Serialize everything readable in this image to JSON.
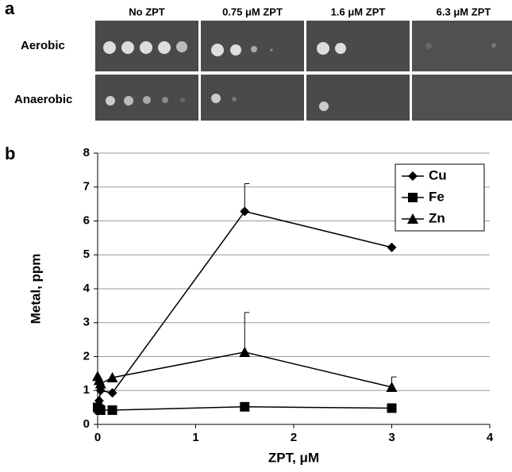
{
  "panel_a": {
    "label": "a",
    "columns": [
      "No ZPT",
      "0.75 μM ZPT",
      "1.6 μM ZPT",
      "6.3 μM ZPT"
    ],
    "rows": [
      "Aerobic",
      "Anaerobic"
    ]
  },
  "panel_b": {
    "label": "b"
  },
  "chart_data": {
    "type": "line",
    "xlabel": "ZPT, μM",
    "ylabel": "Metal, ppm",
    "x": [
      0,
      0.015,
      0.03,
      0.15,
      1.5,
      3
    ],
    "series": [
      {
        "name": "Cu",
        "color": "#000000",
        "marker": "diamond",
        "values": [
          0.5,
          0.7,
          1.0,
          0.93,
          6.28,
          5.22
        ],
        "errors": [
          null,
          null,
          null,
          null,
          0.82,
          null
        ]
      },
      {
        "name": "Fe",
        "color": "#000000",
        "marker": "square",
        "values": [
          0.5,
          0.45,
          0.42,
          0.42,
          0.52,
          0.48
        ],
        "errors": [
          null,
          null,
          null,
          null,
          null,
          null
        ]
      },
      {
        "name": "Zn",
        "color": "#000000",
        "marker": "triangle",
        "values": [
          1.42,
          1.3,
          1.2,
          1.38,
          2.13,
          1.1
        ],
        "errors": [
          null,
          null,
          null,
          null,
          1.17,
          0.3
        ]
      }
    ],
    "xlim": [
      0,
      4
    ],
    "xticks": [
      0,
      1,
      2,
      3,
      4
    ],
    "ylim": [
      0,
      8
    ],
    "yticks": [
      0,
      1,
      2,
      3,
      4,
      5,
      6,
      7,
      8
    ],
    "grid": true,
    "legend": "upper right"
  }
}
